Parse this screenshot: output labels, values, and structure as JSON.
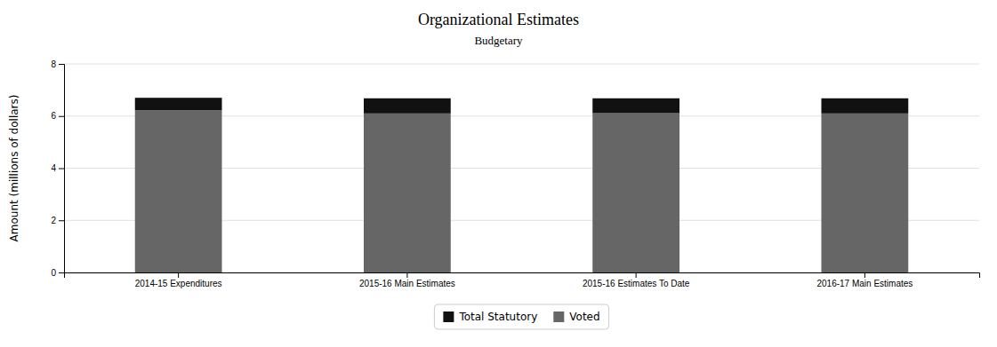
{
  "chart_data": {
    "type": "bar",
    "stacked": true,
    "title": "Organizational Estimates",
    "subtitle": "Budgetary",
    "y_label": "Amount (millions of dollars)",
    "categories": [
      "2014-15 Expenditures",
      "2015-16 Main Estimates",
      "2015-16 Estimates To Date",
      "2016-17 Main Estimates"
    ],
    "series": [
      {
        "name": "Voted",
        "color": "#666666",
        "values": [
          6.22,
          6.1,
          6.11,
          6.1
        ]
      },
      {
        "name": "Total Statutory",
        "color": "#111111",
        "values": [
          0.48,
          0.58,
          0.57,
          0.58
        ]
      }
    ],
    "ylim": [
      0,
      8
    ],
    "yticks": [
      0,
      2,
      4,
      6,
      8
    ],
    "grid": true,
    "legend": "bottom"
  }
}
